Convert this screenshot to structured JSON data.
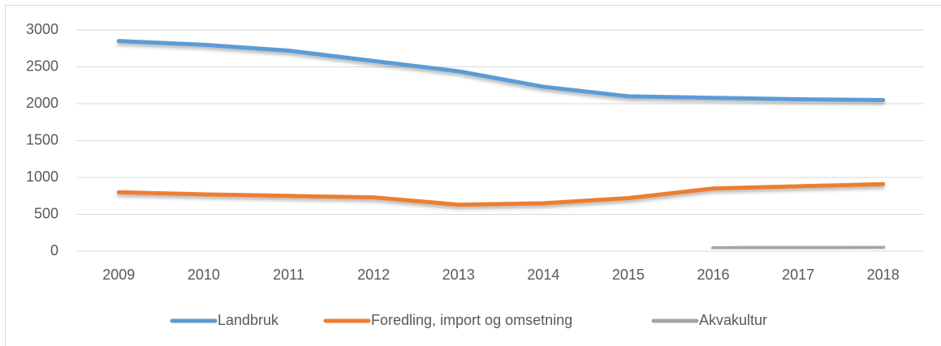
{
  "chart_data": {
    "type": "line",
    "categories": [
      "2009",
      "2010",
      "2011",
      "2012",
      "2013",
      "2014",
      "2015",
      "2016",
      "2017",
      "2018"
    ],
    "series": [
      {
        "name": "Landbruk",
        "color": "#5b9bd5",
        "values": [
          2850,
          2800,
          2720,
          2580,
          2440,
          2230,
          2100,
          2080,
          2060,
          2050
        ]
      },
      {
        "name": "Foredling, import og omsetning",
        "color": "#ed7d31",
        "values": [
          800,
          770,
          750,
          730,
          630,
          650,
          720,
          850,
          880,
          910
        ]
      },
      {
        "name": "Akvakultur",
        "color": "#a5a5a5",
        "values": [
          null,
          null,
          null,
          null,
          null,
          null,
          null,
          40,
          50,
          60
        ]
      }
    ],
    "ylim": [
      0,
      3000
    ],
    "yticks": [
      0,
      500,
      1000,
      1500,
      2000,
      2500,
      3000
    ],
    "grid": true,
    "legend": "bottom"
  }
}
